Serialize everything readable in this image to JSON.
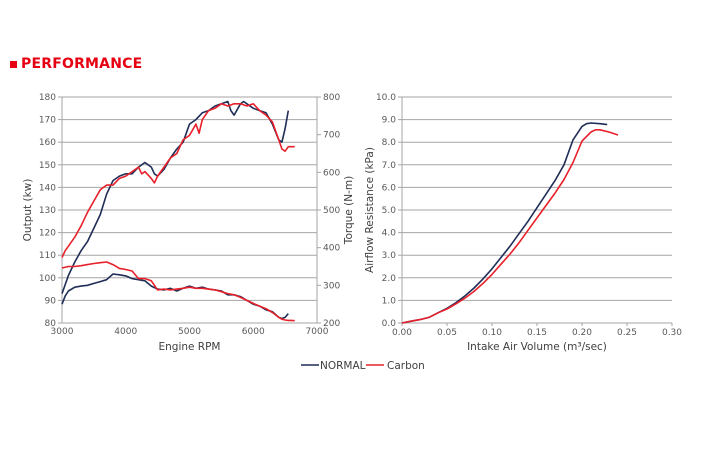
{
  "header": {
    "title": "PERFORMANCE"
  },
  "colors": {
    "normal": "#1f2d57",
    "carbon": "#e8202a",
    "grid": "#a6a6a6",
    "title": "#e60012"
  },
  "legend": [
    {
      "name": "NORMAL",
      "color": "#1f2d57"
    },
    {
      "name": "Carbon",
      "color": "#e8202a"
    }
  ],
  "chart_data": [
    {
      "type": "line",
      "title": "",
      "xlabel": "Engine RPM",
      "ylabel": "Output (kw)",
      "y2label": "Torque (N-m)",
      "xlim": [
        3000,
        7000
      ],
      "ylim": [
        80,
        180
      ],
      "y2lim": [
        200,
        800
      ],
      "xticks": [
        "3000",
        "4000",
        "5000",
        "6000",
        "7000"
      ],
      "yticks": [
        "80",
        "90",
        "100",
        "110",
        "120",
        "130",
        "140",
        "150",
        "160",
        "170",
        "180"
      ],
      "y2ticks": [
        "200",
        "300",
        "400",
        "500",
        "600",
        "700",
        "800"
      ],
      "grid": true,
      "series": [
        {
          "name": "NORMAL",
          "metric": "Output",
          "axis": "left",
          "x": [
            3000,
            3050,
            3100,
            3200,
            3300,
            3400,
            3500,
            3600,
            3700,
            3800,
            3900,
            4000,
            4100,
            4200,
            4300,
            4400,
            4450,
            4500,
            4600,
            4700,
            4800,
            4900,
            5000,
            5100,
            5200,
            5300,
            5400,
            5500,
            5600,
            5650,
            5700,
            5800,
            5850,
            5900,
            6000,
            6100,
            6200,
            6300,
            6400,
            6450,
            6500,
            6550
          ],
          "y": [
            93,
            97,
            101,
            107,
            112,
            116,
            122,
            128,
            137,
            143,
            145,
            146,
            146,
            149,
            151,
            149,
            146,
            145,
            148,
            153,
            157,
            160,
            168,
            170,
            173,
            174,
            176,
            177,
            178,
            174,
            172,
            177,
            178,
            177,
            175,
            174,
            173,
            168,
            161,
            160,
            166,
            174
          ]
        },
        {
          "name": "Carbon",
          "metric": "Output",
          "axis": "left",
          "x": [
            3000,
            3050,
            3100,
            3200,
            3300,
            3400,
            3500,
            3600,
            3700,
            3800,
            3900,
            4000,
            4100,
            4200,
            4250,
            4300,
            4400,
            4450,
            4500,
            4600,
            4700,
            4800,
            4900,
            5000,
            5100,
            5150,
            5200,
            5300,
            5400,
            5500,
            5600,
            5700,
            5800,
            5900,
            6000,
            6100,
            6200,
            6300,
            6400,
            6450,
            6500,
            6550,
            6600,
            6650
          ],
          "y": [
            109,
            112,
            114,
            118,
            123,
            129,
            134,
            139,
            141,
            141,
            144,
            145,
            147,
            149,
            146,
            147,
            144,
            142,
            145,
            149,
            153,
            155,
            161,
            163,
            168,
            164,
            170,
            174,
            175,
            177,
            176,
            177,
            177,
            176,
            177,
            174,
            172,
            169,
            161,
            157,
            156,
            158,
            158,
            158
          ]
        },
        {
          "name": "NORMAL",
          "metric": "Torque",
          "axis": "right",
          "x": [
            3000,
            3050,
            3100,
            3200,
            3300,
            3400,
            3500,
            3600,
            3700,
            3800,
            3900,
            4000,
            4100,
            4200,
            4300,
            4400,
            4500,
            4600,
            4700,
            4800,
            4900,
            5000,
            5100,
            5200,
            5300,
            5400,
            5500,
            5600,
            5700,
            5800,
            5900,
            6000,
            6100,
            6200,
            6300,
            6400,
            6450,
            6500,
            6550
          ],
          "y": [
            250,
            272,
            285,
            295,
            298,
            300,
            305,
            310,
            315,
            330,
            328,
            325,
            318,
            315,
            312,
            298,
            290,
            288,
            292,
            285,
            292,
            298,
            292,
            295,
            290,
            288,
            285,
            275,
            275,
            270,
            260,
            250,
            245,
            235,
            230,
            215,
            212,
            215,
            225
          ]
        },
        {
          "name": "Carbon",
          "metric": "Torque",
          "axis": "right",
          "x": [
            3000,
            3100,
            3200,
            3300,
            3400,
            3500,
            3600,
            3700,
            3800,
            3900,
            4000,
            4100,
            4200,
            4300,
            4400,
            4500,
            4600,
            4700,
            4800,
            4900,
            5000,
            5100,
            5200,
            5300,
            5400,
            5500,
            5600,
            5700,
            5800,
            5900,
            6000,
            6100,
            6200,
            6300,
            6400,
            6450,
            6500,
            6550,
            6600,
            6650
          ],
          "y": [
            346,
            350,
            350,
            352,
            355,
            358,
            360,
            362,
            355,
            345,
            342,
            338,
            318,
            318,
            312,
            288,
            290,
            288,
            290,
            292,
            295,
            292,
            292,
            290,
            288,
            283,
            278,
            275,
            268,
            260,
            252,
            245,
            238,
            228,
            215,
            210,
            208,
            207,
            207,
            206
          ]
        }
      ]
    },
    {
      "type": "line",
      "title": "",
      "xlabel": "Intake Air Volume (m³/sec)",
      "ylabel": "Airflow Resistance (kPa)",
      "xlim": [
        0,
        0.3
      ],
      "ylim": [
        0,
        10
      ],
      "xticks": [
        "0.00",
        "0.05",
        "0.10",
        "0.15",
        "0.20",
        "0.25",
        "0.30"
      ],
      "yticks": [
        "0.0",
        "1.0",
        "2.0",
        "3.0",
        "4.0",
        "5.0",
        "6.0",
        "7.0",
        "8.0",
        "9.0",
        "10.0"
      ],
      "grid": true,
      "series": [
        {
          "name": "NORMAL",
          "x": [
            0,
            0.01,
            0.02,
            0.03,
            0.04,
            0.05,
            0.06,
            0.07,
            0.08,
            0.09,
            0.1,
            0.11,
            0.12,
            0.13,
            0.14,
            0.15,
            0.16,
            0.17,
            0.18,
            0.19,
            0.2,
            0.205,
            0.21,
            0.22,
            0.228
          ],
          "y": [
            0,
            0.08,
            0.15,
            0.25,
            0.45,
            0.65,
            0.9,
            1.2,
            1.55,
            1.95,
            2.4,
            2.9,
            3.4,
            3.95,
            4.5,
            5.1,
            5.7,
            6.3,
            7.0,
            8.1,
            8.7,
            8.82,
            8.85,
            8.82,
            8.78
          ]
        },
        {
          "name": "Carbon",
          "x": [
            0,
            0.01,
            0.02,
            0.03,
            0.04,
            0.05,
            0.06,
            0.07,
            0.08,
            0.09,
            0.1,
            0.11,
            0.12,
            0.13,
            0.14,
            0.15,
            0.16,
            0.17,
            0.18,
            0.19,
            0.2,
            0.21,
            0.215,
            0.22,
            0.23,
            0.24
          ],
          "y": [
            0,
            0.08,
            0.15,
            0.25,
            0.45,
            0.62,
            0.85,
            1.1,
            1.4,
            1.75,
            2.15,
            2.6,
            3.05,
            3.55,
            4.1,
            4.65,
            5.2,
            5.75,
            6.35,
            7.1,
            8.05,
            8.45,
            8.55,
            8.55,
            8.45,
            8.32
          ]
        }
      ]
    }
  ]
}
